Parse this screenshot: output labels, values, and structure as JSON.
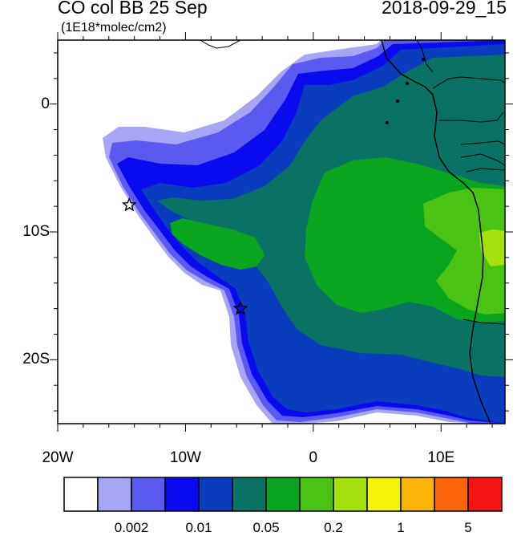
{
  "header": {
    "title": "CO col BB 25 Sep",
    "units": "(1E18*molec/cm2)",
    "datetime": "2018-09-29_15"
  },
  "map": {
    "lon_range": [
      -20,
      15
    ],
    "lat_range": [
      -25,
      5
    ],
    "lon_ticks": [
      {
        "value": -20,
        "label": "20W"
      },
      {
        "value": -10,
        "label": "10W"
      },
      {
        "value": 0,
        "label": "0"
      },
      {
        "value": 10,
        "label": "10E"
      }
    ],
    "lat_ticks": [
      {
        "value": 0,
        "label": "0"
      },
      {
        "value": -10,
        "label": "10S"
      },
      {
        "value": -20,
        "label": "20S"
      }
    ],
    "markers": [
      {
        "name": "ascension-island-star",
        "lon": -14.4,
        "lat": -7.9
      },
      {
        "name": "st-helena-star",
        "lon": -5.7,
        "lat": -16.0
      }
    ]
  },
  "colorbar": {
    "colors": [
      "#ffffff",
      "#a6a6f5",
      "#5a5af0",
      "#0a0aee",
      "#0a3cbe",
      "#0a7264",
      "#0aa51e",
      "#4bc314",
      "#a5e10f",
      "#f5f50a",
      "#fab40a",
      "#fa640a",
      "#f51414"
    ],
    "labels": [
      {
        "boundary": 2,
        "text": "0.002"
      },
      {
        "boundary": 4,
        "text": "0.01"
      },
      {
        "boundary": 6,
        "text": "0.05"
      },
      {
        "boundary": 8,
        "text": "0.2"
      },
      {
        "boundary": 10,
        "text": "1"
      },
      {
        "boundary": 12,
        "text": "5"
      }
    ]
  }
}
